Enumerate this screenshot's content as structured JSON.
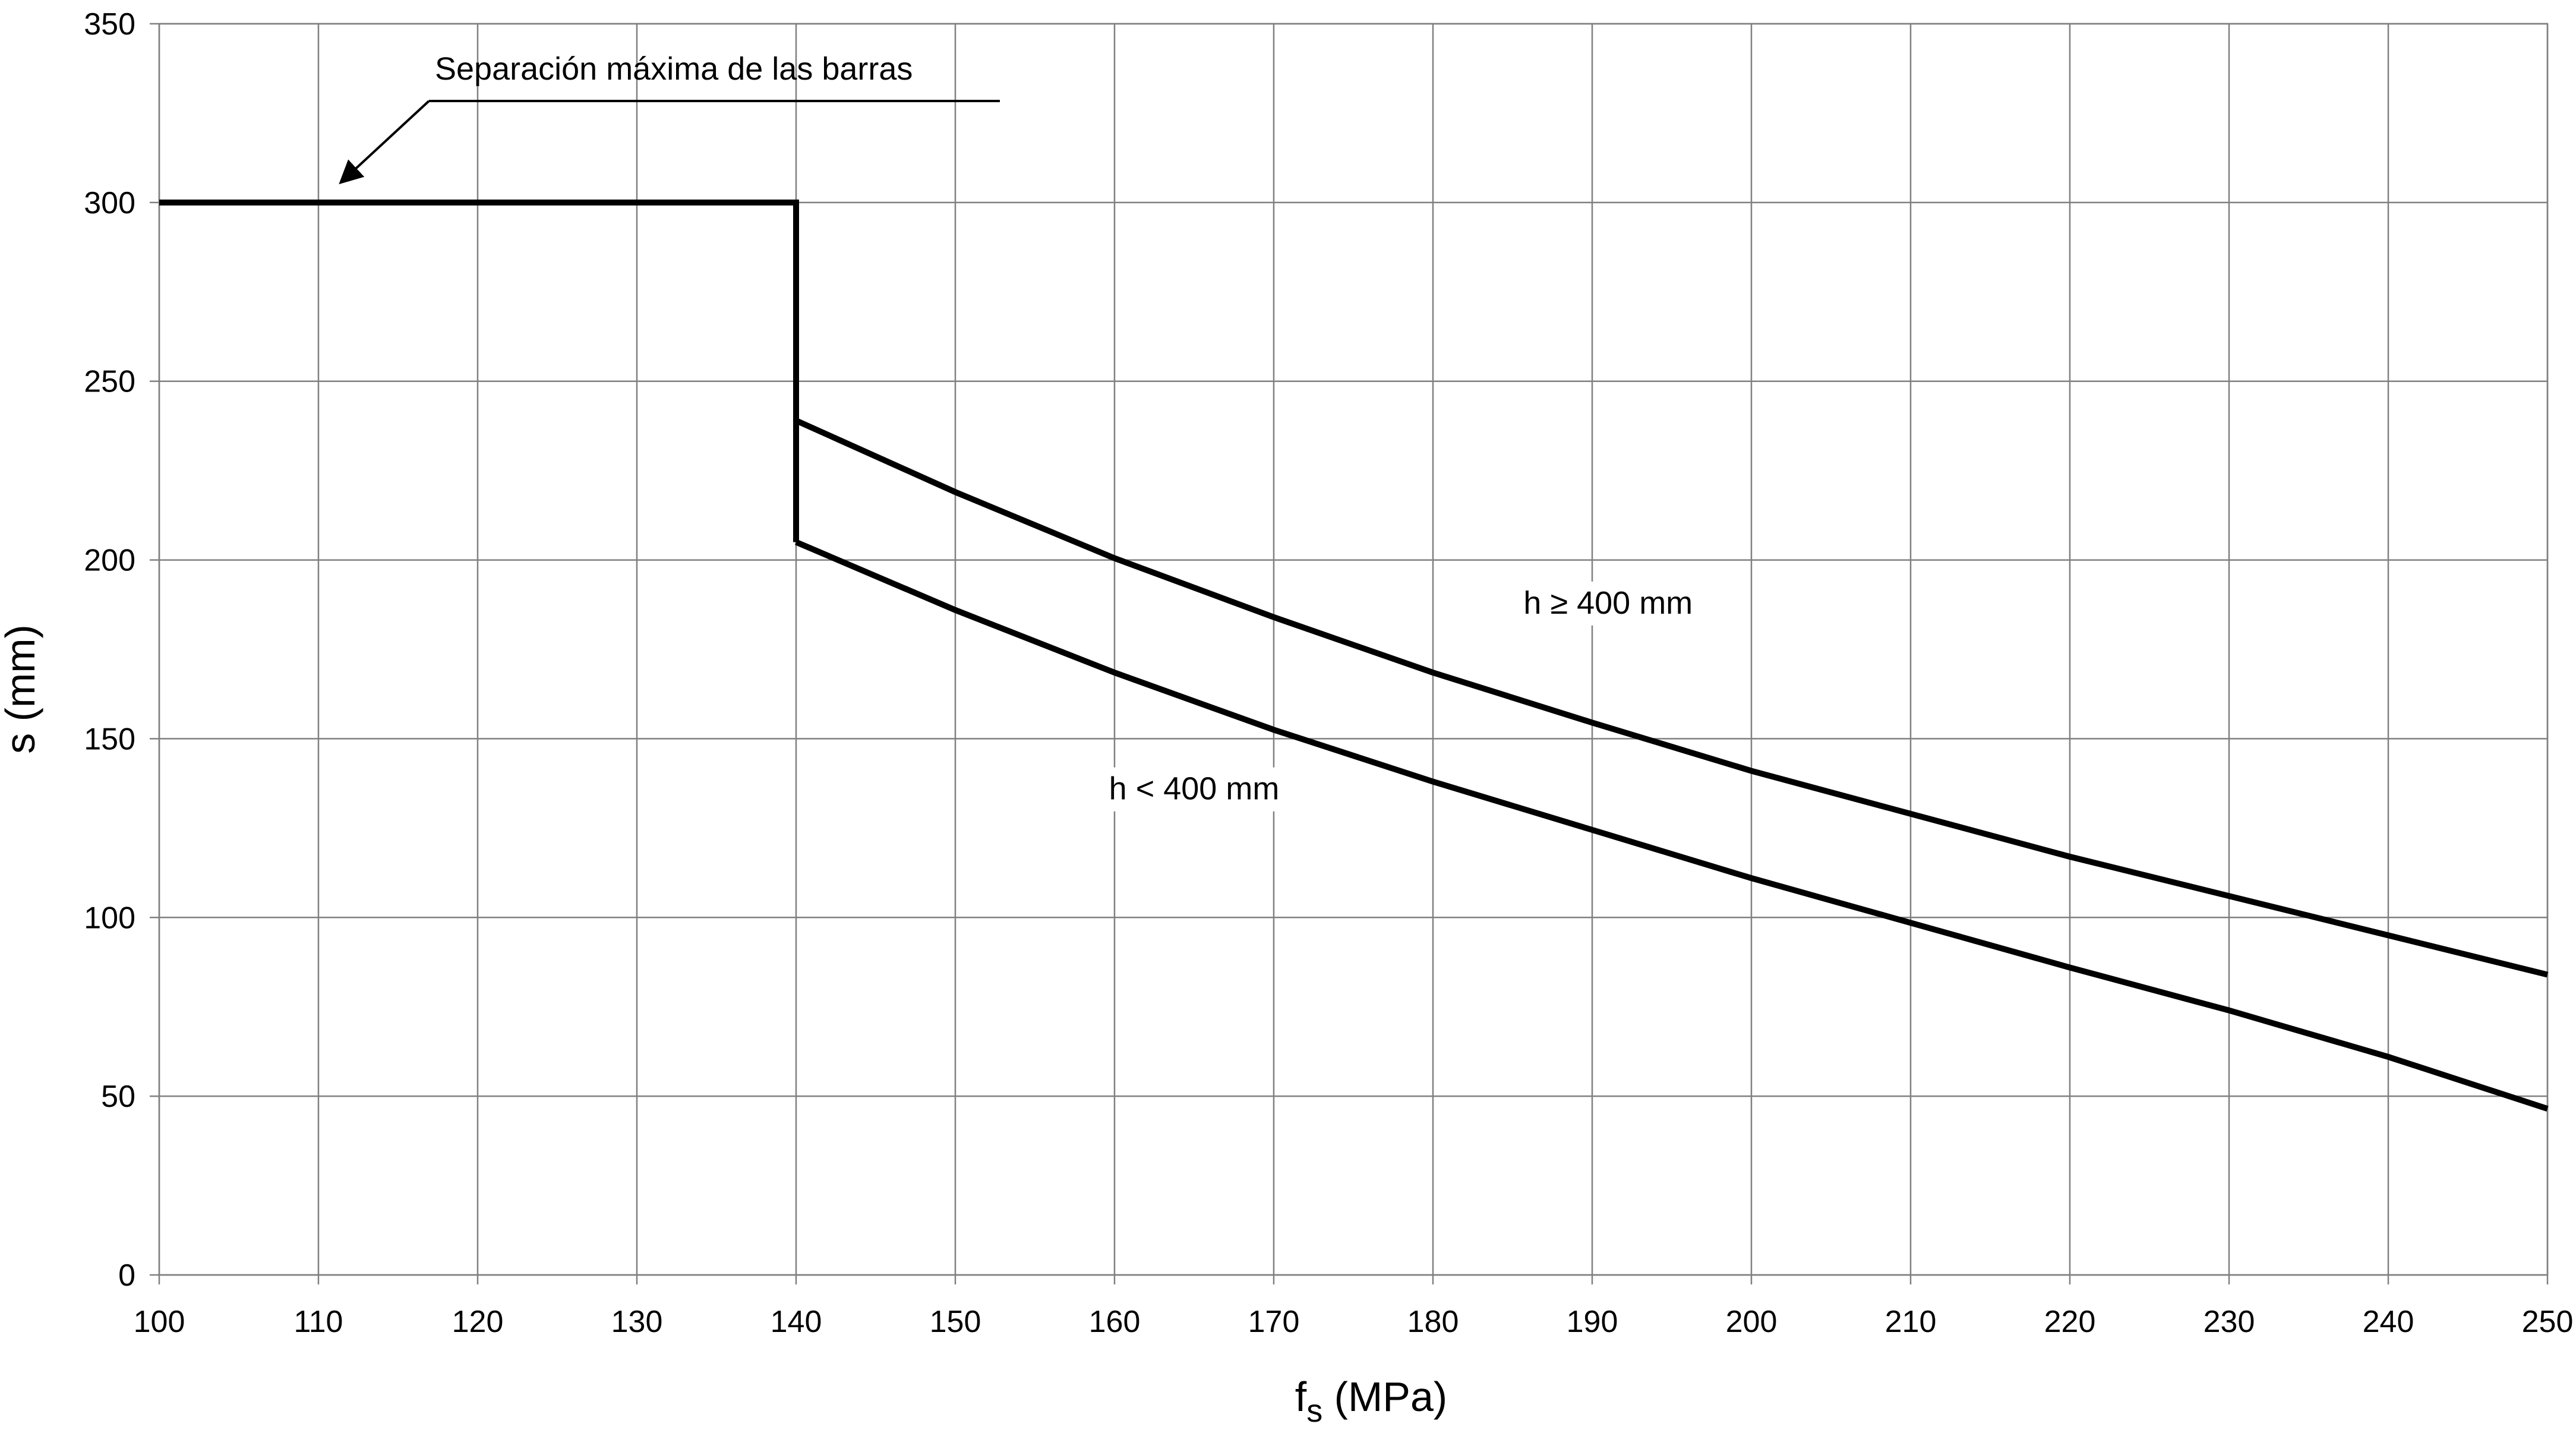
{
  "chart_data": {
    "type": "line",
    "title": "",
    "xlabel": "f",
    "xlabel_sub": "s",
    "xlabel_unit": " (MPa)",
    "ylabel": "s (mm)",
    "xlim": [
      100,
      250
    ],
    "ylim": [
      0,
      350
    ],
    "x_ticks": [
      "100",
      "110",
      "120",
      "130",
      "140",
      "150",
      "160",
      "170",
      "180",
      "190",
      "200",
      "210",
      "220",
      "230",
      "240",
      "250"
    ],
    "y_ticks": [
      "0",
      "50",
      "100",
      "150",
      "200",
      "250",
      "300",
      "350"
    ],
    "grid": true,
    "series": [
      {
        "points": [
          [
            100,
            300
          ],
          [
            140,
            300
          ],
          [
            140,
            205
          ]
        ]
      },
      {
        "name": "h ≥ 400 mm",
        "points": [
          [
            140,
            239
          ],
          [
            150,
            219
          ],
          [
            160,
            200.5
          ],
          [
            170,
            184
          ],
          [
            180,
            168.5
          ],
          [
            190,
            154.5
          ],
          [
            200,
            141
          ],
          [
            210,
            129
          ],
          [
            220,
            117
          ],
          [
            230,
            106
          ],
          [
            240,
            95
          ],
          [
            250,
            84
          ]
        ]
      },
      {
        "name": "h < 400 mm",
        "points": [
          [
            140,
            205
          ],
          [
            150,
            186
          ],
          [
            160,
            168.5
          ],
          [
            170,
            152.5
          ],
          [
            180,
            138
          ],
          [
            190,
            124.5
          ],
          [
            200,
            111
          ],
          [
            210,
            98.5
          ],
          [
            220,
            86
          ],
          [
            230,
            74
          ],
          [
            240,
            61
          ],
          [
            250,
            46.5
          ]
        ]
      }
    ],
    "annotations": [
      {
        "text": "Separación máxima de las barras",
        "arrow_to": [
          111.5,
          306
        ]
      },
      {
        "text": "h ≥ 400 mm",
        "at": [
          191,
          185
        ]
      },
      {
        "text": "h < 400 mm",
        "at": [
          165,
          133
        ]
      }
    ]
  }
}
